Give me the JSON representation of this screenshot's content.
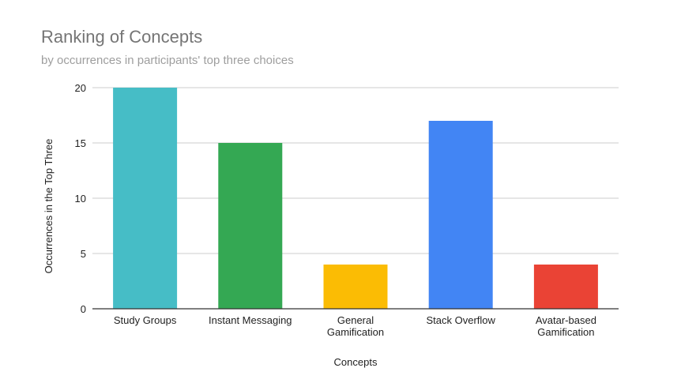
{
  "chart_data": {
    "type": "bar",
    "title": "Ranking of Concepts",
    "subtitle": "by occurrences in participants' top three choices",
    "xlabel": "Concepts",
    "ylabel": "Occurrences in the Top Three",
    "categories": [
      "Study Groups",
      "Instant Messaging",
      "General Gamification",
      "Stack Overflow",
      "Avatar-based Gamification"
    ],
    "category_lines": [
      [
        "Study Groups"
      ],
      [
        "Instant Messaging"
      ],
      [
        "General",
        "Gamification"
      ],
      [
        "Stack Overflow"
      ],
      [
        "Avatar-based",
        "Gamification"
      ]
    ],
    "values": [
      20,
      15,
      4,
      17,
      4
    ],
    "colors": [
      "#46bdc6",
      "#34a853",
      "#fbbc04",
      "#4285f4",
      "#ea4335"
    ],
    "ylim": [
      0,
      20
    ],
    "yticks": [
      "0",
      "5",
      "10",
      "15",
      "20"
    ],
    "grid": true,
    "legend": "none"
  }
}
